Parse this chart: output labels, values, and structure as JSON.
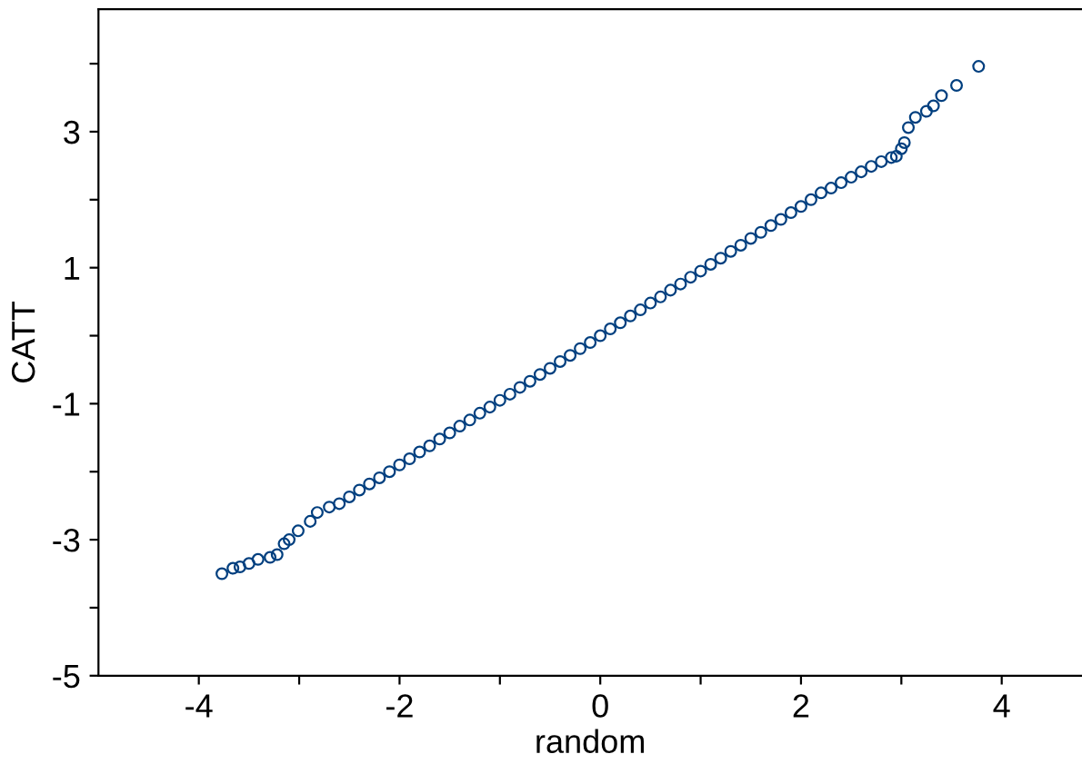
{
  "chart_data": {
    "type": "scatter",
    "xlabel": "random",
    "ylabel": "CATT",
    "xlim": [
      -5,
      4.8
    ],
    "ylim": [
      -5,
      4.8
    ],
    "xticks": [
      -4,
      {
        "value": -3,
        "label": null
      },
      -2,
      {
        "value": -1,
        "label": null
      },
      0,
      {
        "value": 1,
        "label": null
      },
      2,
      {
        "value": 3,
        "label": null
      },
      4
    ],
    "yticks": [
      -5,
      {
        "value": -4,
        "label": null
      },
      -3,
      {
        "value": -2,
        "label": null
      },
      -1,
      {
        "value": 0,
        "label": null
      },
      1,
      {
        "value": 2,
        "label": null
      },
      3,
      {
        "value": 4,
        "label": null
      }
    ],
    "marker": "circle",
    "grid": false,
    "legend": false,
    "series": [
      {
        "color": "#003f7f",
        "x": [
          -3.77,
          -3.66,
          -3.59,
          -3.5,
          -3.41,
          -3.29,
          -3.22,
          -3.15,
          -3.1,
          -3.01,
          -2.89,
          -2.82,
          -2.7,
          -2.6,
          -2.5,
          -2.4,
          -2.3,
          -2.2,
          -2.1,
          -2.0,
          -1.9,
          -1.8,
          -1.7,
          -1.6,
          -1.5,
          -1.4,
          -1.3,
          -1.2,
          -1.1,
          -1.0,
          -0.9,
          -0.8,
          -0.7,
          -0.6,
          -0.5,
          -0.4,
          -0.3,
          -0.2,
          -0.1,
          0,
          0.1,
          0.2,
          0.3,
          0.4,
          0.5,
          0.6,
          0.7,
          0.8,
          0.9,
          1.0,
          1.1,
          1.2,
          1.3,
          1.4,
          1.5,
          1.6,
          1.7,
          1.8,
          1.9,
          2.0,
          2.1,
          2.2,
          2.3,
          2.4,
          2.5,
          2.6,
          2.7,
          2.8,
          2.9,
          2.95,
          3.0,
          3.03,
          3.07,
          3.14,
          3.25,
          3.32,
          3.4,
          3.55,
          3.77
        ],
        "values": [
          -3.5,
          -3.42,
          -3.4,
          -3.35,
          -3.29,
          -3.26,
          -3.22,
          -3.06,
          -3.0,
          -2.87,
          -2.73,
          -2.6,
          -2.52,
          -2.47,
          -2.37,
          -2.27,
          -2.18,
          -2.09,
          -2.0,
          -1.9,
          -1.81,
          -1.71,
          -1.62,
          -1.52,
          -1.43,
          -1.33,
          -1.24,
          -1.14,
          -1.05,
          -0.95,
          -0.86,
          -0.76,
          -0.67,
          -0.57,
          -0.48,
          -0.38,
          -0.29,
          -0.19,
          -0.1,
          0,
          0.1,
          0.19,
          0.29,
          0.38,
          0.48,
          0.57,
          0.67,
          0.76,
          0.86,
          0.95,
          1.05,
          1.14,
          1.24,
          1.33,
          1.43,
          1.52,
          1.62,
          1.71,
          1.81,
          1.9,
          2.0,
          2.1,
          2.17,
          2.25,
          2.33,
          2.41,
          2.49,
          2.56,
          2.62,
          2.64,
          2.75,
          2.84,
          3.06,
          3.21,
          3.3,
          3.38,
          3.53,
          3.68,
          3.96
        ]
      }
    ]
  }
}
